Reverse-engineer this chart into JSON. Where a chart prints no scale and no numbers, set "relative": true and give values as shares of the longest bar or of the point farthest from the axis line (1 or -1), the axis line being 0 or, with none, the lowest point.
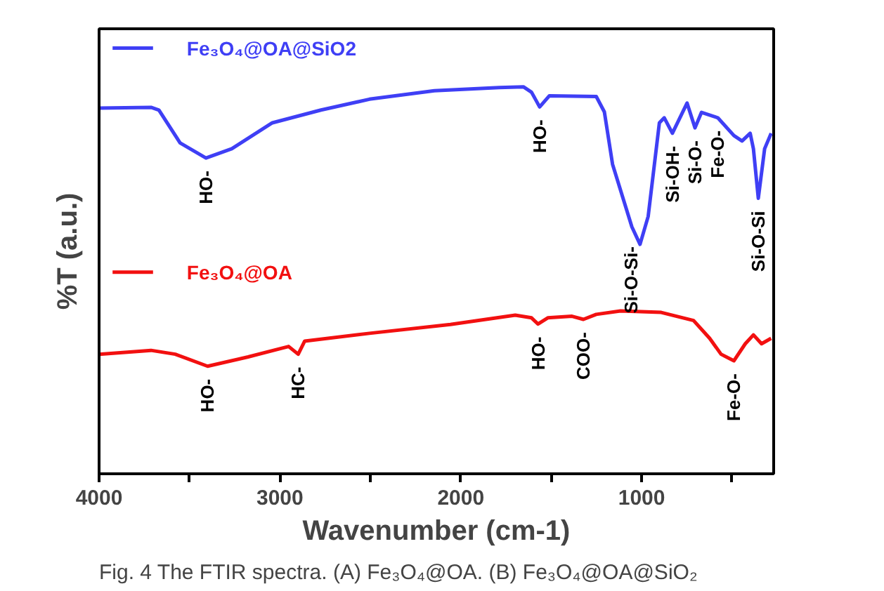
{
  "chart_data": {
    "type": "line",
    "relative": true,
    "xlabel": "Wavenumber (cm-1)",
    "ylabel": "%T (a.u.)",
    "xlim": [
      4000,
      270
    ],
    "xticks": [
      4000,
      {
        "value": 3500,
        "label": null
      },
      3000,
      {
        "value": 2500,
        "label": null
      },
      2000,
      {
        "value": 1500,
        "label": null
      },
      1000,
      {
        "value": 500,
        "label": null
      }
    ],
    "legend": "top left",
    "grid": false,
    "marker": "none",
    "line_style": "solid",
    "series": [
      {
        "name": "Fe₃O₄@OA@SiO2",
        "color": "#3f3ff5",
        "x": [
          4000,
          3713,
          3669,
          3552,
          3409,
          3266,
          3042,
          2773,
          2505,
          2146,
          1788,
          1654,
          1609,
          1564,
          1510,
          1251,
          1206,
          1161,
          1099,
          1054,
          1009,
          964,
          902,
          875,
          830,
          749,
          705,
          669,
          579,
          490,
          445,
          400,
          382,
          355,
          320,
          284
        ],
        "values": [
          0.945,
          0.947,
          0.94,
          0.855,
          0.816,
          0.84,
          0.907,
          0.94,
          0.968,
          0.99,
          0.998,
          1.0,
          0.986,
          0.948,
          0.977,
          0.975,
          0.935,
          0.8,
          0.706,
          0.638,
          0.593,
          0.665,
          0.907,
          0.92,
          0.88,
          0.958,
          0.894,
          0.934,
          0.92,
          0.874,
          0.86,
          0.88,
          0.84,
          0.712,
          0.84,
          0.88
        ]
      },
      {
        "name": "Fe₃O₄@OA",
        "color": "#f21010",
        "x": [
          4000,
          3713,
          3579,
          3400,
          3176,
          2952,
          2899,
          2863,
          2505,
          2057,
          1699,
          1609,
          1573,
          1519,
          1385,
          1322,
          1251,
          1117,
          892,
          713,
          624,
          561,
          490,
          427,
          382,
          337,
          284
        ],
        "values": [
          0.309,
          0.319,
          0.309,
          0.278,
          0.302,
          0.329,
          0.309,
          0.343,
          0.363,
          0.386,
          0.41,
          0.403,
          0.387,
          0.403,
          0.407,
          0.399,
          0.412,
          0.421,
          0.417,
          0.396,
          0.35,
          0.309,
          0.292,
          0.336,
          0.359,
          0.336,
          0.35
        ]
      }
    ],
    "annotations": [
      {
        "text": "HO-",
        "x": 3409,
        "y": 0.816
      },
      {
        "text": "HO-",
        "x": 1564,
        "y": 0.948
      },
      {
        "text": "Si-O-Si-",
        "x": 1060,
        "y": 0.62
      },
      {
        "text": "Si-OH-",
        "x": 830,
        "y": 0.88
      },
      {
        "text": "Si-O-",
        "x": 705,
        "y": 0.894
      },
      {
        "text": "Fe-O-",
        "x": 579,
        "y": 0.92
      },
      {
        "text": "Si-O-Si",
        "x": 355,
        "y": 0.712
      },
      {
        "text": "HO-",
        "x": 3400,
        "y": 0.278
      },
      {
        "text": "HC-",
        "x": 2899,
        "y": 0.309
      },
      {
        "text": "HO-",
        "x": 1573,
        "y": 0.387
      },
      {
        "text": "COO-",
        "x": 1322,
        "y": 0.399
      },
      {
        "text": "Fe-O-",
        "x": 490,
        "y": 0.292
      },
      "Fig. 4  The FTIR spectra. (A) Fe₃O₄@OA. (B) Fe₃O₄@OA@SiO₂"
    ]
  }
}
